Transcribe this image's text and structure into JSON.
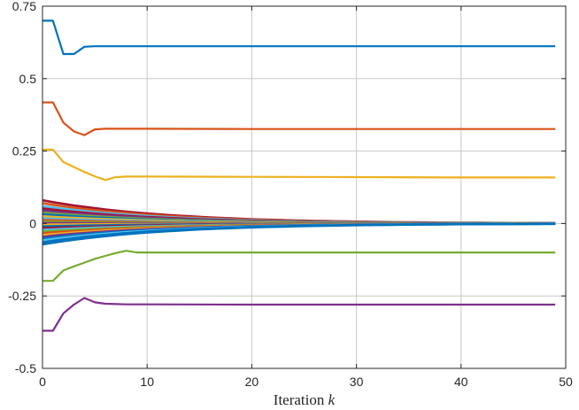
{
  "chart_data": {
    "type": "line",
    "title": "",
    "xlabel": "Iteration k",
    "xlabel_main": "Iteration",
    "xlabel_var": "k",
    "ylabel": "",
    "xlim": [
      0,
      50
    ],
    "ylim": [
      -0.5,
      0.75
    ],
    "xticks": [
      0,
      10,
      20,
      30,
      40,
      50
    ],
    "xtick_labels": [
      "0",
      "10",
      "20",
      "30",
      "40",
      "50"
    ],
    "yticks": [
      -0.5,
      -0.25,
      0,
      0.25,
      0.5,
      0.75
    ],
    "ytick_labels": [
      "-0.5",
      "-0.25",
      "0",
      "0.25",
      "0.5",
      "0.75"
    ],
    "grid": true,
    "series": [
      {
        "color": "#0072BD",
        "x": [
          0,
          1,
          2,
          3,
          4,
          5,
          7,
          10,
          20,
          30,
          40,
          49
        ],
        "y": [
          0.7,
          0.7,
          0.585,
          0.585,
          0.61,
          0.612,
          0.612,
          0.612,
          0.612,
          0.612,
          0.612,
          0.612
        ]
      },
      {
        "color": "#D95319",
        "x": [
          0,
          1,
          2,
          3,
          4,
          5,
          6,
          8,
          10,
          20,
          30,
          40,
          49
        ],
        "y": [
          0.418,
          0.418,
          0.348,
          0.318,
          0.305,
          0.325,
          0.327,
          0.327,
          0.327,
          0.326,
          0.326,
          0.326,
          0.326
        ]
      },
      {
        "color": "#EDB120",
        "x": [
          0,
          1,
          2,
          3,
          4,
          5,
          6,
          7,
          8,
          10,
          20,
          30,
          40,
          49
        ],
        "y": [
          0.255,
          0.255,
          0.212,
          0.195,
          0.178,
          0.163,
          0.15,
          0.16,
          0.162,
          0.162,
          0.161,
          0.16,
          0.159,
          0.159
        ]
      },
      {
        "color": "#77AC30",
        "x": [
          0,
          1,
          2,
          3,
          4,
          5,
          6,
          7,
          8,
          9,
          10,
          20,
          30,
          40,
          49
        ],
        "y": [
          -0.198,
          -0.198,
          -0.162,
          -0.148,
          -0.135,
          -0.122,
          -0.112,
          -0.102,
          -0.094,
          -0.1,
          -0.1,
          -0.1,
          -0.1,
          -0.1,
          -0.1
        ]
      },
      {
        "color": "#7E2F8E",
        "x": [
          0,
          1,
          2,
          3,
          4,
          5,
          6,
          8,
          10,
          20,
          30,
          40,
          49
        ],
        "y": [
          -0.37,
          -0.37,
          -0.31,
          -0.28,
          -0.257,
          -0.272,
          -0.277,
          -0.279,
          -0.279,
          -0.28,
          -0.28,
          -0.28,
          -0.28
        ]
      },
      {
        "color": "#A2142F",
        "decay": true,
        "y0": 0.08
      },
      {
        "color": "#D95319",
        "decay": true,
        "y0": 0.07
      },
      {
        "color": "#4DBEEE",
        "decay": true,
        "y0": 0.06
      },
      {
        "color": "#A2142F",
        "decay": true,
        "y0": 0.052
      },
      {
        "color": "#7E2F8E",
        "decay": true,
        "y0": 0.045
      },
      {
        "color": "#77AC30",
        "decay": true,
        "y0": 0.038
      },
      {
        "color": "#0072BD",
        "decay": true,
        "y0": 0.032
      },
      {
        "color": "#EDB120",
        "decay": true,
        "y0": 0.025
      },
      {
        "color": "#4DBEEE",
        "decay": true,
        "y0": 0.018
      },
      {
        "color": "#D95319",
        "decay": true,
        "y0": 0.012
      },
      {
        "color": "#77AC30",
        "decay": true,
        "y0": 0.006
      },
      {
        "color": "#7E2F8E",
        "decay": true,
        "y0": 0.001
      },
      {
        "color": "#EDB120",
        "decay": true,
        "y0": -0.004
      },
      {
        "color": "#0072BD",
        "decay": true,
        "y0": -0.01
      },
      {
        "color": "#A2142F",
        "decay": true,
        "y0": -0.016
      },
      {
        "color": "#4DBEEE",
        "decay": true,
        "y0": -0.022
      },
      {
        "color": "#77AC30",
        "decay": true,
        "y0": -0.028
      },
      {
        "color": "#D95319",
        "decay": true,
        "y0": -0.034
      },
      {
        "color": "#EDB120",
        "decay": true,
        "y0": -0.04
      },
      {
        "color": "#7E2F8E",
        "decay": true,
        "y0": -0.046
      },
      {
        "color": "#0072BD",
        "decay": true,
        "y0": -0.052
      },
      {
        "color": "#4DBEEE",
        "decay": true,
        "y0": -0.058
      },
      {
        "color": "#0072BD",
        "decay": true,
        "y0": -0.065
      },
      {
        "color": "#0072BD",
        "decay": true,
        "y0": -0.072
      }
    ]
  }
}
